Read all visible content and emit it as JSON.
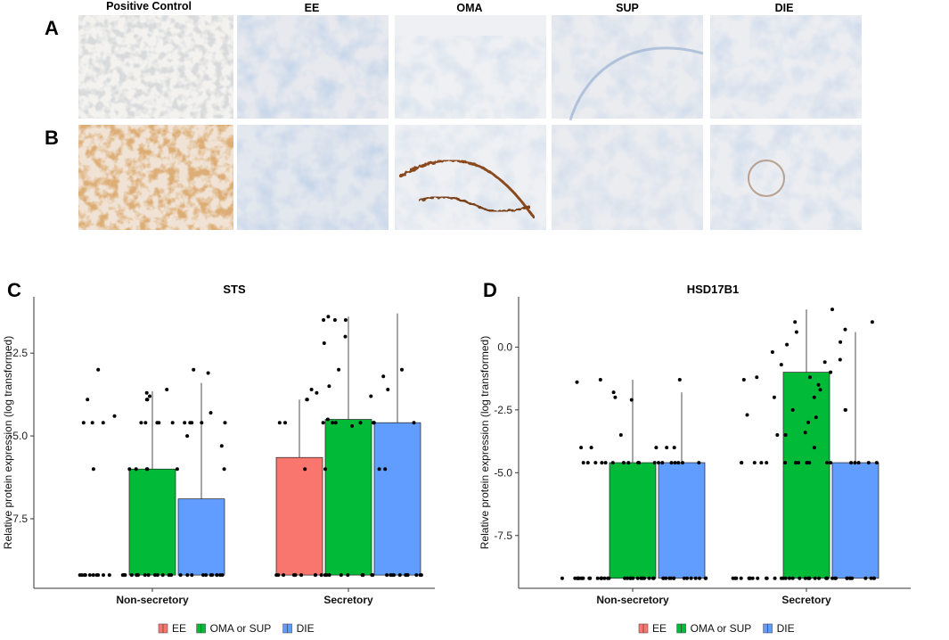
{
  "figure": {
    "row_labels": [
      "A",
      "B"
    ],
    "column_titles": [
      "Positive Control",
      "EE",
      "OMA",
      "SUP",
      "DIE"
    ],
    "panel_c_label": "C",
    "panel_d_label": "D"
  },
  "colors": {
    "EE": "#F8766D",
    "OMA or SUP": "#00BA38",
    "DIE": "#619CFF"
  },
  "chart_data": [
    {
      "type": "bar",
      "title": "STS",
      "ylabel": "Relative protein expression (log transformed)",
      "xlabel": "",
      "categories": [
        "Non-secretory",
        "Secretory"
      ],
      "ylim": [
        -9.6,
        -0.8
      ],
      "yticks": [
        -7.5,
        -5.0,
        -2.5
      ],
      "ytick_labels": [
        "-7.5",
        "-5.0",
        "-2.5"
      ],
      "baseline": -9.2,
      "series": [
        {
          "name": "EE",
          "values": [
            null,
            -5.65
          ],
          "upper": [
            null,
            -3.9
          ]
        },
        {
          "name": "OMA or SUP",
          "values": [
            -6.0,
            -4.5
          ],
          "upper": [
            -3.65,
            -1.4
          ]
        },
        {
          "name": "DIE",
          "values": [
            -6.9,
            -4.6
          ],
          "upper": [
            -3.4,
            -1.3
          ]
        }
      ],
      "points": [
        {
          "cat": 0,
          "series": 0,
          "y": [
            -9.2,
            -9.2,
            -9.2,
            -9.2,
            -9.2,
            -9.2,
            -9.2,
            -9.2,
            -9.2,
            -9.2,
            -9.2,
            -9.2,
            -3.0,
            -3.9,
            -4.6,
            -4.6,
            -4.6,
            -4.4,
            -6.0,
            -9.2,
            -9.2
          ]
        },
        {
          "cat": 0,
          "series": 1,
          "y": [
            -9.2,
            -9.2,
            -9.2,
            -9.2,
            -9.2,
            -9.2,
            -9.2,
            -9.2,
            -9.2,
            -9.2,
            -6.0,
            -6.0,
            -6.0,
            -6.0,
            -4.6,
            -4.6,
            -4.6,
            -4.6,
            -4.6,
            -3.7,
            -3.8,
            -3.9,
            -3.6,
            -3.9,
            -6.0,
            -9.2,
            -9.2
          ]
        },
        {
          "cat": 0,
          "series": 2,
          "y": [
            -9.2,
            -9.2,
            -9.2,
            -9.2,
            -9.2,
            -9.2,
            -9.2,
            -9.2,
            -9.2,
            -9.2,
            -4.6,
            -4.6,
            -4.6,
            -4.6,
            -4.6,
            -3.0,
            -3.1,
            -4.3,
            -5.0,
            -5.3,
            -6.0,
            -9.2,
            -9.2
          ]
        },
        {
          "cat": 1,
          "series": 0,
          "y": [
            -9.2,
            -9.2,
            -9.2,
            -9.2,
            -9.2,
            -9.2,
            -9.2,
            -9.2,
            -3.6,
            -3.7,
            -4.6,
            -4.6,
            -4.6,
            -3.9,
            -3.9,
            -6.0,
            -9.2,
            -9.2
          ]
        },
        {
          "cat": 1,
          "series": 1,
          "y": [
            -9.2,
            -9.2,
            -9.2,
            -9.2,
            -9.2,
            -9.2,
            -9.2,
            -9.2,
            -1.4,
            -1.5,
            -1.5,
            -1.5,
            -2.0,
            -2.2,
            -3.0,
            -4.6,
            -4.6,
            -4.6,
            -4.5,
            -3.5,
            -3.8,
            -4.7,
            -6.0,
            -9.2,
            -9.2
          ]
        },
        {
          "cat": 1,
          "series": 2,
          "y": [
            -9.2,
            -9.2,
            -9.2,
            -9.2,
            -9.2,
            -9.2,
            -9.2,
            -9.2,
            -9.2,
            -3.0,
            -3.2,
            -3.6,
            -4.6,
            -4.6,
            -4.6,
            -4.6,
            -6.0,
            -6.0,
            -9.2,
            -9.2
          ]
        }
      ],
      "legend_position": "bottom"
    },
    {
      "type": "bar",
      "title": "HSD17B1",
      "ylabel": "Relative protein expression (log transformed)",
      "xlabel": "",
      "categories": [
        "Non-secretory",
        "Secretory"
      ],
      "ylim": [
        -9.6,
        2.0
      ],
      "yticks": [
        -7.5,
        -5.0,
        -2.5,
        0.0
      ],
      "ytick_labels": [
        "-7.5",
        "-5.0",
        "-2.5",
        "0.0"
      ],
      "baseline": -9.2,
      "series": [
        {
          "name": "EE",
          "values": [
            null,
            null
          ],
          "upper": [
            null,
            null
          ]
        },
        {
          "name": "OMA or SUP",
          "values": [
            -4.6,
            -1.0
          ],
          "upper": [
            -1.3,
            1.5
          ]
        },
        {
          "name": "DIE",
          "values": [
            -4.6,
            -4.6
          ],
          "upper": [
            -1.8,
            0.6
          ]
        }
      ],
      "points": [
        {
          "cat": 0,
          "series": 0,
          "y": [
            -9.2,
            -9.2,
            -9.2,
            -9.2,
            -9.2,
            -9.2,
            -9.2,
            -9.2,
            -9.2,
            -9.2,
            -9.2,
            -9.2,
            -9.2,
            -9.2,
            -1.3,
            -1.4,
            -4.0,
            -4.0,
            -4.6,
            -4.6,
            -4.6,
            -4.6,
            -4.6,
            -9.2,
            -9.2
          ]
        },
        {
          "cat": 0,
          "series": 1,
          "y": [
            -9.2,
            -9.2,
            -9.2,
            -9.2,
            -9.2,
            -9.2,
            -9.2,
            -9.2,
            -9.2,
            -9.2,
            -9.2,
            -9.2,
            -4.6,
            -4.6,
            -4.6,
            -4.6,
            -4.6,
            -4.6,
            -1.8,
            -2.0,
            -2.1,
            -3.5,
            -4.0,
            -9.2,
            -9.2
          ]
        },
        {
          "cat": 0,
          "series": 2,
          "y": [
            -9.2,
            -9.2,
            -9.2,
            -9.2,
            -9.2,
            -9.2,
            -9.2,
            -9.2,
            -9.2,
            -9.2,
            -9.2,
            -9.2,
            -4.6,
            -4.6,
            -4.6,
            -4.6,
            -4.6,
            -4.6,
            -4.6,
            -4.0,
            -4.0,
            -1.3,
            -9.2,
            -9.2
          ]
        },
        {
          "cat": 1,
          "series": 0,
          "y": [
            -9.2,
            -9.2,
            -9.2,
            -9.2,
            -9.2,
            -9.2,
            -9.2,
            -9.2,
            -9.2,
            -9.2,
            -9.2,
            -9.2,
            -0.2,
            -0.7,
            -1.2,
            -1.3,
            -2.7,
            -4.6,
            -4.6,
            -4.6,
            -4.6,
            -4.6,
            -2.0,
            -3.5,
            -9.2
          ]
        },
        {
          "cat": 1,
          "series": 1,
          "y": [
            -9.2,
            -9.2,
            -9.2,
            -9.2,
            -9.2,
            -9.2,
            -9.2,
            -9.2,
            -9.2,
            -9.2,
            0.6,
            1.0,
            0.1,
            -0.6,
            -1.2,
            -1.5,
            -2.0,
            -2.5,
            -3.0,
            -3.5,
            -4.0,
            -4.6,
            -4.6,
            -4.6,
            -4.6,
            -4.6,
            -4.6,
            -4.6,
            -4.6,
            -1.7,
            -2.8,
            -3.4,
            -9.2,
            -9.2
          ]
        },
        {
          "cat": 1,
          "series": 2,
          "y": [
            -9.2,
            -9.2,
            -9.2,
            -9.2,
            -9.2,
            -9.2,
            -9.2,
            -9.2,
            -9.2,
            -9.2,
            1.5,
            1.0,
            0.7,
            0.2,
            -0.5,
            -1.0,
            -2.5,
            -2.5,
            -4.6,
            -4.6,
            -4.6,
            -4.6,
            -4.6,
            -4.6,
            -9.2,
            -9.2
          ]
        }
      ],
      "legend_position": "bottom"
    }
  ]
}
